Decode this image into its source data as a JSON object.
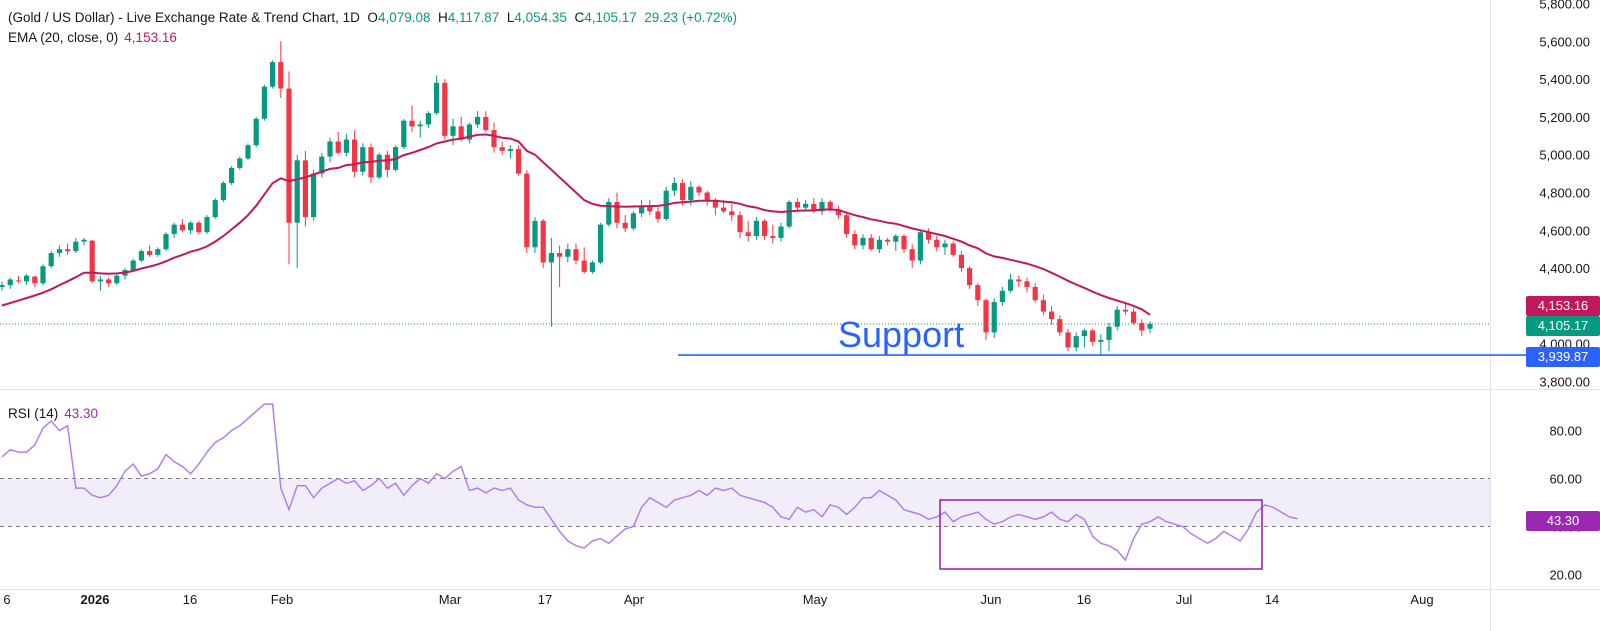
{
  "header": {
    "title": "(Gold / US Dollar) - Live Exchange Rate & Trend Chart, 1D",
    "open_label": "O",
    "open": "4,079.08",
    "high_label": "H",
    "high": "4,117.87",
    "low_label": "L",
    "low": "4,054.35",
    "close_label": "C",
    "close": "4,105.17",
    "change": "29.23 (+0.72%)"
  },
  "ema": {
    "label": "EMA (20, close, 0)",
    "value": "4,153.16"
  },
  "rsi": {
    "label": "RSI (14)",
    "value": "43.30"
  },
  "tags": {
    "ema": "4,153.16",
    "close": "4,105.17",
    "support": "3,939.87",
    "rsi": "43.30"
  },
  "annotation": "Support",
  "colors": {
    "up": "#089981",
    "down": "#f23645",
    "ema": "#c2185b",
    "rsi": "#b37feb",
    "support": "#2962ff",
    "box": "#9c27b0"
  },
  "chart_data": [
    {
      "type": "candlestick",
      "title": "(Gold / US Dollar) - Live Exchange Rate & Trend Chart, 1D",
      "x_ticks": [
        "6",
        "2026",
        "16",
        "Feb",
        "Mar",
        "17",
        "Apr",
        "May",
        "Jun",
        "16",
        "Jul",
        "14",
        "Aug"
      ],
      "y_ticks": [
        "3,800.00",
        "4,000.00",
        "4,200.00",
        "4,400.00",
        "4,600.00",
        "4,800.00",
        "5,000.00",
        "5,200.00",
        "5,400.00",
        "5,600.00",
        "5,800.00"
      ],
      "ylim": [
        3760,
        5820
      ],
      "support_level": 3939.87,
      "last_close": 4105.17,
      "ema_20_last": 4153.16,
      "ohlc": [
        [
          4300,
          4330,
          4280,
          4310
        ],
        [
          4310,
          4350,
          4290,
          4340
        ],
        [
          4335,
          4360,
          4320,
          4330
        ],
        [
          4330,
          4370,
          4310,
          4360
        ],
        [
          4355,
          4360,
          4300,
          4320
        ],
        [
          4320,
          4420,
          4310,
          4410
        ],
        [
          4410,
          4490,
          4400,
          4480
        ],
        [
          4480,
          4520,
          4460,
          4500
        ],
        [
          4500,
          4530,
          4470,
          4490
        ],
        [
          4490,
          4560,
          4480,
          4540
        ],
        [
          4540,
          4560,
          4520,
          4550
        ],
        [
          4545,
          4550,
          4320,
          4330
        ],
        [
          4330,
          4360,
          4280,
          4340
        ],
        [
          4340,
          4350,
          4300,
          4320
        ],
        [
          4320,
          4370,
          4310,
          4360
        ],
        [
          4360,
          4400,
          4340,
          4390
        ],
        [
          4390,
          4450,
          4380,
          4440
        ],
        [
          4440,
          4500,
          4430,
          4490
        ],
        [
          4490,
          4520,
          4460,
          4470
        ],
        [
          4470,
          4510,
          4460,
          4500
        ],
        [
          4500,
          4590,
          4490,
          4580
        ],
        [
          4580,
          4640,
          4560,
          4630
        ],
        [
          4630,
          4660,
          4590,
          4600
        ],
        [
          4600,
          4650,
          4580,
          4640
        ],
        [
          4640,
          4650,
          4580,
          4590
        ],
        [
          4590,
          4680,
          4580,
          4670
        ],
        [
          4670,
          4770,
          4660,
          4760
        ],
        [
          4760,
          4860,
          4750,
          4850
        ],
        [
          4850,
          4940,
          4840,
          4930
        ],
        [
          4930,
          4990,
          4920,
          4980
        ],
        [
          4980,
          5060,
          4970,
          5050
        ],
        [
          5050,
          5200,
          5040,
          5190
        ],
        [
          5190,
          5370,
          5180,
          5360
        ],
        [
          5360,
          5500,
          5350,
          5490
        ],
        [
          5490,
          5600,
          5300,
          5350
        ],
        [
          5350,
          5440,
          4420,
          4640
        ],
        [
          4640,
          5000,
          4400,
          4970
        ],
        [
          4970,
          5020,
          4620,
          4670
        ],
        [
          4670,
          4920,
          4650,
          4900
        ],
        [
          4900,
          5010,
          4880,
          4990
        ],
        [
          4990,
          5090,
          4960,
          5070
        ],
        [
          5070,
          5120,
          5000,
          5010
        ],
        [
          5010,
          5110,
          4990,
          5080
        ],
        [
          5080,
          5130,
          4880,
          4910
        ],
        [
          4910,
          5060,
          4890,
          5040
        ],
        [
          5040,
          5060,
          4850,
          4880
        ],
        [
          4880,
          5010,
          4870,
          5000
        ],
        [
          5000,
          5020,
          4880,
          4920
        ],
        [
          4920,
          5050,
          4910,
          5040
        ],
        [
          5040,
          5190,
          5030,
          5180
        ],
        [
          5180,
          5260,
          5120,
          5150
        ],
        [
          5150,
          5180,
          5090,
          5160
        ],
        [
          5160,
          5230,
          5140,
          5220
        ],
        [
          5220,
          5420,
          5210,
          5380
        ],
        [
          5380,
          5400,
          5080,
          5100
        ],
        [
          5100,
          5190,
          5050,
          5150
        ],
        [
          5150,
          5200,
          5070,
          5080
        ],
        [
          5080,
          5170,
          5060,
          5160
        ],
        [
          5160,
          5230,
          5140,
          5200
        ],
        [
          5200,
          5230,
          5120,
          5130
        ],
        [
          5130,
          5170,
          5010,
          5040
        ],
        [
          5040,
          5070,
          5000,
          5020
        ],
        [
          5020,
          5050,
          4980,
          5030
        ],
        [
          5030,
          5050,
          4890,
          4900
        ],
        [
          4900,
          4920,
          4480,
          4510
        ],
        [
          4510,
          4670,
          4480,
          4650
        ],
        [
          4650,
          4660,
          4400,
          4430
        ],
        [
          4430,
          4560,
          4090,
          4480
        ],
        [
          4480,
          4520,
          4300,
          4460
        ],
        [
          4460,
          4530,
          4430,
          4500
        ],
        [
          4500,
          4530,
          4420,
          4440
        ],
        [
          4440,
          4510,
          4370,
          4380
        ],
        [
          4380,
          4440,
          4370,
          4430
        ],
        [
          4430,
          4640,
          4420,
          4630
        ],
        [
          4630,
          4770,
          4620,
          4750
        ],
        [
          4750,
          4800,
          4610,
          4640
        ],
        [
          4640,
          4680,
          4590,
          4610
        ],
        [
          4610,
          4700,
          4600,
          4690
        ],
        [
          4690,
          4760,
          4670,
          4730
        ],
        [
          4730,
          4760,
          4680,
          4700
        ],
        [
          4700,
          4720,
          4640,
          4660
        ],
        [
          4660,
          4830,
          4650,
          4810
        ],
        [
          4810,
          4880,
          4780,
          4850
        ],
        [
          4850,
          4870,
          4730,
          4760
        ],
        [
          4760,
          4860,
          4730,
          4830
        ],
        [
          4830,
          4840,
          4780,
          4800
        ],
        [
          4800,
          4810,
          4730,
          4760
        ],
        [
          4760,
          4770,
          4680,
          4720
        ],
        [
          4720,
          4760,
          4690,
          4700
        ],
        [
          4700,
          4740,
          4650,
          4680
        ],
        [
          4680,
          4700,
          4560,
          4590
        ],
        [
          4590,
          4650,
          4540,
          4570
        ],
        [
          4570,
          4670,
          4550,
          4650
        ],
        [
          4650,
          4660,
          4550,
          4570
        ],
        [
          4570,
          4630,
          4530,
          4560
        ],
        [
          4560,
          4640,
          4540,
          4620
        ],
        [
          4620,
          4760,
          4610,
          4750
        ],
        [
          4750,
          4770,
          4700,
          4720
        ],
        [
          4720,
          4760,
          4700,
          4740
        ],
        [
          4740,
          4770,
          4690,
          4700
        ],
        [
          4700,
          4770,
          4680,
          4750
        ],
        [
          4750,
          4760,
          4700,
          4710
        ],
        [
          4710,
          4730,
          4660,
          4680
        ],
        [
          4680,
          4690,
          4560,
          4580
        ],
        [
          4580,
          4600,
          4500,
          4520
        ],
        [
          4520,
          4580,
          4500,
          4560
        ],
        [
          4560,
          4580,
          4490,
          4500
        ],
        [
          4500,
          4570,
          4480,
          4550
        ],
        [
          4550,
          4560,
          4520,
          4540
        ],
        [
          4540,
          4580,
          4490,
          4570
        ],
        [
          4570,
          4580,
          4480,
          4500
        ],
        [
          4500,
          4530,
          4400,
          4440
        ],
        [
          4440,
          4600,
          4420,
          4590
        ],
        [
          4590,
          4610,
          4530,
          4550
        ],
        [
          4550,
          4570,
          4490,
          4510
        ],
        [
          4510,
          4550,
          4470,
          4530
        ],
        [
          4530,
          4540,
          4460,
          4470
        ],
        [
          4470,
          4490,
          4380,
          4400
        ],
        [
          4400,
          4410,
          4290,
          4310
        ],
        [
          4310,
          4320,
          4200,
          4230
        ],
        [
          4230,
          4240,
          4020,
          4060
        ],
        [
          4060,
          4240,
          4030,
          4220
        ],
        [
          4220,
          4300,
          4200,
          4280
        ],
        [
          4280,
          4370,
          4270,
          4340
        ],
        [
          4340,
          4360,
          4300,
          4330
        ],
        [
          4330,
          4350,
          4270,
          4300
        ],
        [
          4300,
          4320,
          4220,
          4230
        ],
        [
          4230,
          4260,
          4150,
          4170
        ],
        [
          4170,
          4200,
          4100,
          4130
        ],
        [
          4130,
          4150,
          4040,
          4060
        ],
        [
          4060,
          4080,
          3960,
          3980
        ],
        [
          3980,
          4060,
          3960,
          4040
        ],
        [
          4040,
          4080,
          3980,
          4070
        ],
        [
          4070,
          4080,
          3990,
          4010
        ],
        [
          4010,
          4050,
          3940,
          4020
        ],
        [
          4020,
          4110,
          3960,
          4090
        ],
        [
          4090,
          4200,
          4070,
          4180
        ],
        [
          4180,
          4210,
          4150,
          4170
        ],
        [
          4170,
          4190,
          4100,
          4110
        ],
        [
          4110,
          4130,
          4040,
          4070
        ],
        [
          4079.08,
          4117.87,
          4054.35,
          4105.17
        ]
      ],
      "ema_series": {
        "name": "EMA (20, close, 0)",
        "values": [
          4202,
          4215,
          4228,
          4242,
          4255,
          4270,
          4288,
          4310,
          4330,
          4352,
          4375,
          4375,
          4372,
          4370,
          4372,
          4376,
          4385,
          4398,
          4408,
          4420,
          4436,
          4455,
          4470,
          4487,
          4498,
          4515,
          4540,
          4570,
          4605,
          4640,
          4680,
          4730,
          4790,
          4850,
          4875,
          4860,
          4870,
          4880,
          4895,
          4910,
          4925,
          4930,
          4945,
          4950,
          4960,
          4962,
          4968,
          4970,
          4977,
          4998,
          5010,
          5025,
          5040,
          5060,
          5070,
          5080,
          5085,
          5095,
          5105,
          5107,
          5100,
          5090,
          5085,
          5070,
          5020,
          5000,
          4960,
          4920,
          4880,
          4840,
          4800,
          4760,
          4740,
          4730,
          4728,
          4726,
          4725,
          4726,
          4727,
          4728,
          4729,
          4735,
          4745,
          4748,
          4752,
          4756,
          4756,
          4756,
          4752,
          4748,
          4740,
          4727,
          4720,
          4707,
          4700,
          4697,
          4700,
          4703,
          4705,
          4705,
          4710,
          4710,
          4708,
          4693,
          4680,
          4670,
          4658,
          4650,
          4640,
          4635,
          4622,
          4610,
          4600,
          4590,
          4580,
          4570,
          4555,
          4540,
          4520,
          4505,
          4478,
          4462,
          4454,
          4444,
          4434,
          4424,
          4410,
          4395,
          4375,
          4355,
          4333,
          4313,
          4295,
          4275,
          4257,
          4242,
          4228,
          4215,
          4200,
          4182,
          4153.16
        ]
      }
    },
    {
      "type": "line",
      "title": "RSI (14)",
      "y_ticks": [
        "20.00",
        "40.00",
        "60.00",
        "80.00"
      ],
      "ylim": [
        17,
        91
      ],
      "bands": [
        40,
        60
      ],
      "last": 43.3,
      "series": [
        {
          "name": "RSI (14)",
          "values": [
            69,
            72,
            71,
            71,
            74,
            81,
            84,
            80,
            82,
            56,
            56,
            53,
            52,
            53,
            57,
            63,
            66,
            61,
            62,
            64,
            70,
            67,
            65,
            62,
            66,
            71,
            75,
            77,
            80,
            82,
            85,
            88,
            91,
            91,
            56,
            47,
            57,
            57,
            52,
            56,
            58,
            60,
            58,
            59,
            55,
            57,
            60,
            56,
            58,
            53,
            57,
            60,
            58,
            62,
            60,
            63,
            65,
            55,
            56,
            54,
            56,
            55,
            56,
            51,
            49,
            48,
            48,
            43,
            38,
            34,
            32,
            31,
            34,
            35,
            33,
            36,
            39,
            40,
            48,
            52,
            50,
            48,
            51,
            52,
            53,
            55,
            53,
            56,
            55,
            56,
            53,
            52,
            51,
            50,
            48,
            44,
            43,
            48,
            46,
            47,
            44,
            49,
            48,
            45,
            48,
            52,
            52,
            55,
            53,
            51,
            47,
            46,
            45,
            43,
            44,
            46,
            42,
            44,
            45,
            46,
            43,
            41,
            42,
            44,
            45,
            44,
            43,
            44,
            46,
            43,
            42,
            45,
            43,
            36,
            33,
            32,
            30,
            26,
            35,
            41,
            42,
            44,
            42,
            41,
            40,
            37,
            35,
            33,
            35,
            38,
            36,
            34,
            39,
            46,
            49,
            48,
            46,
            44,
            43.3
          ]
        }
      ]
    }
  ]
}
